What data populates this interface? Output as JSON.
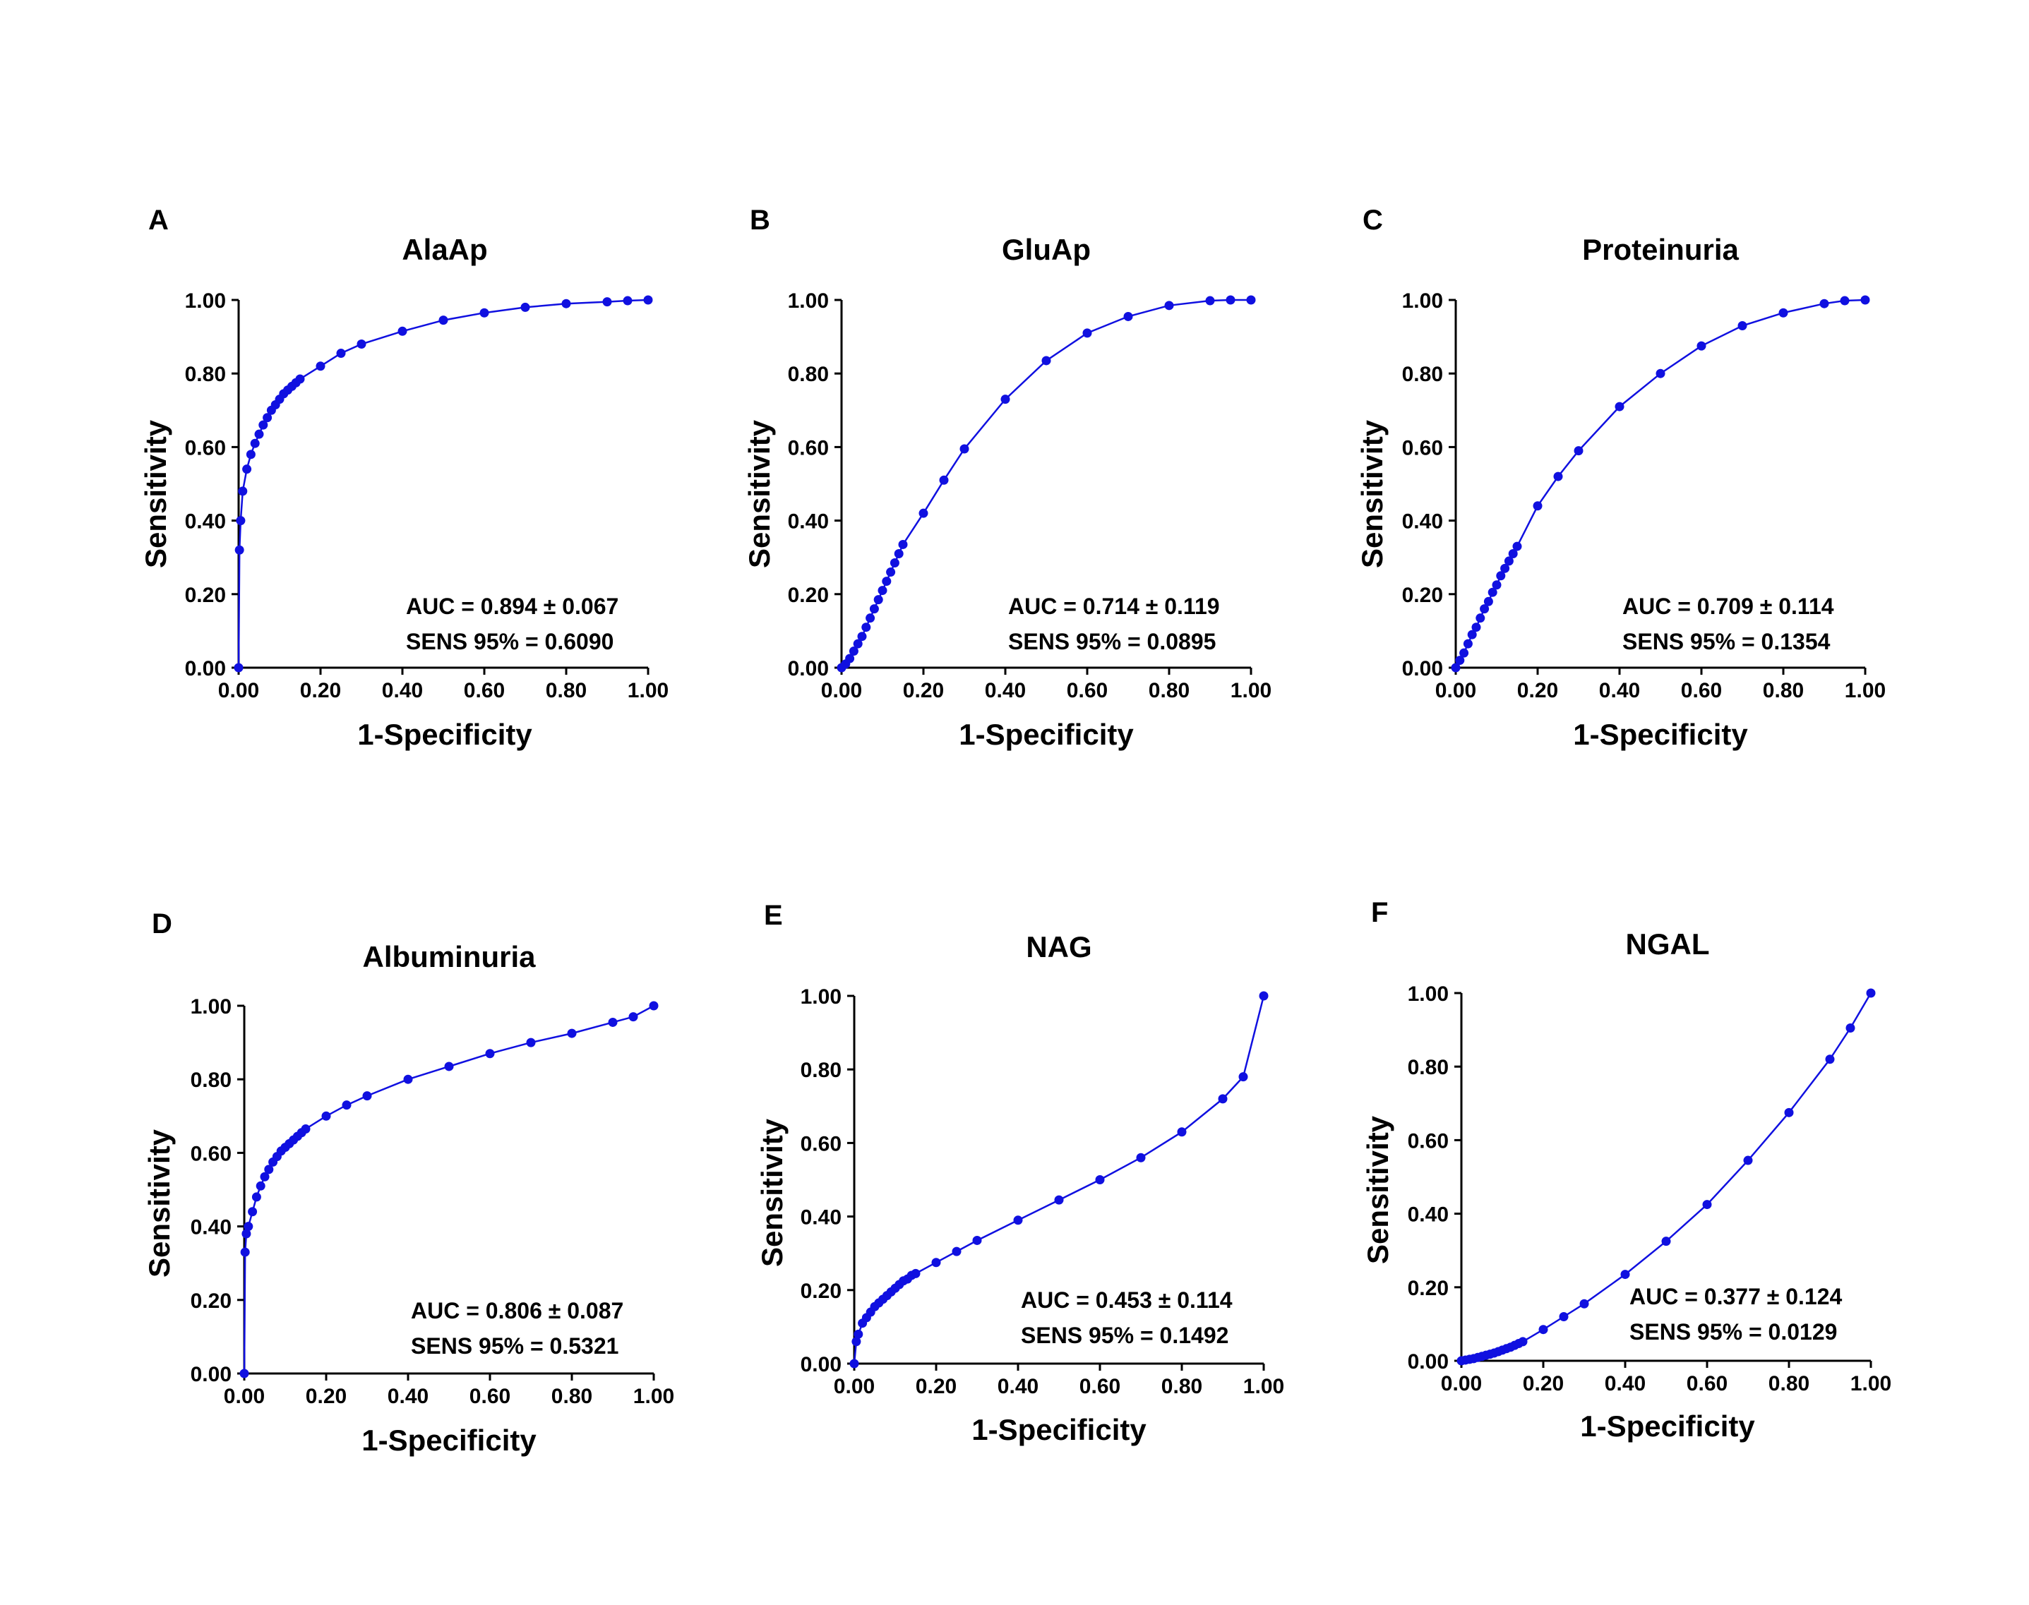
{
  "colors": {
    "curve": "#1010e0",
    "axis": "#000000",
    "background": "#ffffff"
  },
  "chart_data": [
    {
      "type": "line",
      "panel": "A",
      "title": "AlaAp",
      "xlabel": "1-Specificity",
      "ylabel": "Sensitivity",
      "xlim": [
        0,
        1
      ],
      "ylim": [
        0,
        1
      ],
      "xticks": [
        "0.00",
        "0.20",
        "0.40",
        "0.60",
        "0.80",
        "1.00"
      ],
      "yticks": [
        "0.00",
        "0.20",
        "0.40",
        "0.60",
        "0.80",
        "1.00"
      ],
      "annotation": [
        "AUC = 0.894 ± 0.067",
        "SENS 95% = 0.6090"
      ],
      "x": [
        0,
        0.002,
        0.005,
        0.01,
        0.02,
        0.03,
        0.04,
        0.05,
        0.06,
        0.07,
        0.08,
        0.09,
        0.1,
        0.11,
        0.12,
        0.13,
        0.14,
        0.15,
        0.2,
        0.25,
        0.3,
        0.4,
        0.5,
        0.6,
        0.7,
        0.8,
        0.9,
        0.95,
        1.0
      ],
      "y": [
        0,
        0.32,
        0.4,
        0.48,
        0.54,
        0.58,
        0.61,
        0.635,
        0.66,
        0.68,
        0.7,
        0.715,
        0.73,
        0.745,
        0.755,
        0.765,
        0.775,
        0.785,
        0.82,
        0.855,
        0.88,
        0.915,
        0.945,
        0.965,
        0.98,
        0.99,
        0.995,
        0.998,
        1.0
      ]
    },
    {
      "type": "line",
      "panel": "B",
      "title": "GluAp",
      "xlabel": "1-Specificity",
      "ylabel": "Sensitivity",
      "xlim": [
        0,
        1
      ],
      "ylim": [
        0,
        1
      ],
      "xticks": [
        "0.00",
        "0.20",
        "0.40",
        "0.60",
        "0.80",
        "1.00"
      ],
      "yticks": [
        "0.00",
        "0.20",
        "0.40",
        "0.60",
        "0.80",
        "1.00"
      ],
      "annotation": [
        "AUC = 0.714 ± 0.119",
        "SENS 95% = 0.0895"
      ],
      "x": [
        0,
        0.01,
        0.02,
        0.03,
        0.04,
        0.05,
        0.06,
        0.07,
        0.08,
        0.09,
        0.1,
        0.11,
        0.12,
        0.13,
        0.14,
        0.15,
        0.2,
        0.25,
        0.3,
        0.4,
        0.5,
        0.6,
        0.7,
        0.8,
        0.9,
        0.95,
        1.0
      ],
      "y": [
        0,
        0.01,
        0.025,
        0.045,
        0.065,
        0.085,
        0.11,
        0.135,
        0.16,
        0.185,
        0.21,
        0.235,
        0.26,
        0.285,
        0.31,
        0.335,
        0.42,
        0.51,
        0.595,
        0.73,
        0.835,
        0.91,
        0.955,
        0.985,
        0.998,
        1.0,
        1.0
      ]
    },
    {
      "type": "line",
      "panel": "C",
      "title": "Proteinuria",
      "xlabel": "1-Specificity",
      "ylabel": "Sensitivity",
      "xlim": [
        0,
        1
      ],
      "ylim": [
        0,
        1
      ],
      "xticks": [
        "0.00",
        "0.20",
        "0.40",
        "0.60",
        "0.80",
        "1.00"
      ],
      "yticks": [
        "0.00",
        "0.20",
        "0.40",
        "0.60",
        "0.80",
        "1.00"
      ],
      "annotation": [
        "AUC = 0.709 ± 0.114",
        "SENS 95% = 0.1354"
      ],
      "x": [
        0,
        0.01,
        0.02,
        0.03,
        0.04,
        0.05,
        0.06,
        0.07,
        0.08,
        0.09,
        0.1,
        0.11,
        0.12,
        0.13,
        0.14,
        0.15,
        0.2,
        0.25,
        0.3,
        0.4,
        0.5,
        0.6,
        0.7,
        0.8,
        0.9,
        0.95,
        1.0
      ],
      "y": [
        0,
        0.02,
        0.04,
        0.065,
        0.09,
        0.11,
        0.135,
        0.16,
        0.18,
        0.205,
        0.225,
        0.25,
        0.27,
        0.29,
        0.31,
        0.33,
        0.44,
        0.52,
        0.59,
        0.71,
        0.8,
        0.875,
        0.93,
        0.965,
        0.99,
        0.998,
        1.0
      ]
    },
    {
      "type": "line",
      "panel": "D",
      "title": "Albuminuria",
      "xlabel": "1-Specificity",
      "ylabel": "Sensitivity",
      "xlim": [
        0,
        1
      ],
      "ylim": [
        0,
        1
      ],
      "xticks": [
        "0.00",
        "0.20",
        "0.40",
        "0.60",
        "0.80",
        "1.00"
      ],
      "yticks": [
        "0.00",
        "0.20",
        "0.40",
        "0.60",
        "0.80",
        "1.00"
      ],
      "annotation": [
        "AUC = 0.806 ± 0.087",
        "SENS 95% = 0.5321"
      ],
      "x": [
        0,
        0.002,
        0.005,
        0.01,
        0.02,
        0.03,
        0.04,
        0.05,
        0.06,
        0.07,
        0.08,
        0.09,
        0.1,
        0.11,
        0.12,
        0.13,
        0.14,
        0.15,
        0.2,
        0.25,
        0.3,
        0.4,
        0.5,
        0.6,
        0.7,
        0.8,
        0.9,
        0.95,
        1.0
      ],
      "y": [
        0,
        0.33,
        0.38,
        0.4,
        0.44,
        0.48,
        0.51,
        0.535,
        0.555,
        0.575,
        0.59,
        0.605,
        0.615,
        0.625,
        0.635,
        0.645,
        0.655,
        0.665,
        0.7,
        0.73,
        0.755,
        0.8,
        0.835,
        0.87,
        0.9,
        0.925,
        0.955,
        0.97,
        1.0
      ]
    },
    {
      "type": "line",
      "panel": "E",
      "title": "NAG",
      "xlabel": "1-Specificity",
      "ylabel": "Sensitivity",
      "xlim": [
        0,
        1
      ],
      "ylim": [
        0,
        1
      ],
      "xticks": [
        "0.00",
        "0.20",
        "0.40",
        "0.60",
        "0.80",
        "1.00"
      ],
      "yticks": [
        "0.00",
        "0.20",
        "0.40",
        "0.60",
        "0.80",
        "1.00"
      ],
      "annotation": [
        "AUC = 0.453 ± 0.114",
        "SENS 95% = 0.1492"
      ],
      "x": [
        0,
        0.005,
        0.01,
        0.02,
        0.03,
        0.04,
        0.05,
        0.06,
        0.07,
        0.08,
        0.09,
        0.1,
        0.11,
        0.12,
        0.13,
        0.14,
        0.15,
        0.2,
        0.25,
        0.3,
        0.4,
        0.5,
        0.6,
        0.7,
        0.8,
        0.9,
        0.95,
        1.0
      ],
      "y": [
        0,
        0.06,
        0.08,
        0.11,
        0.125,
        0.14,
        0.155,
        0.165,
        0.175,
        0.185,
        0.195,
        0.205,
        0.215,
        0.225,
        0.23,
        0.24,
        0.245,
        0.275,
        0.305,
        0.335,
        0.39,
        0.445,
        0.5,
        0.56,
        0.63,
        0.72,
        0.78,
        1.0
      ]
    },
    {
      "type": "line",
      "panel": "F",
      "title": "NGAL",
      "xlabel": "1-Specificity",
      "ylabel": "Sensitivity",
      "xlim": [
        0,
        1
      ],
      "ylim": [
        0,
        1
      ],
      "xticks": [
        "0.00",
        "0.20",
        "0.40",
        "0.60",
        "0.80",
        "1.00"
      ],
      "yticks": [
        "0.00",
        "0.20",
        "0.40",
        "0.60",
        "0.80",
        "1.00"
      ],
      "annotation": [
        "AUC = 0.377 ± 0.124",
        "SENS 95% = 0.0129"
      ],
      "x": [
        0,
        0.01,
        0.02,
        0.03,
        0.04,
        0.05,
        0.06,
        0.07,
        0.08,
        0.09,
        0.1,
        0.11,
        0.12,
        0.13,
        0.14,
        0.15,
        0.2,
        0.25,
        0.3,
        0.4,
        0.5,
        0.6,
        0.7,
        0.8,
        0.9,
        0.95,
        1.0
      ],
      "y": [
        0,
        0.002,
        0.004,
        0.006,
        0.009,
        0.012,
        0.015,
        0.018,
        0.021,
        0.025,
        0.029,
        0.033,
        0.037,
        0.042,
        0.047,
        0.052,
        0.085,
        0.12,
        0.155,
        0.235,
        0.325,
        0.425,
        0.545,
        0.675,
        0.82,
        0.905,
        1.0
      ]
    }
  ]
}
